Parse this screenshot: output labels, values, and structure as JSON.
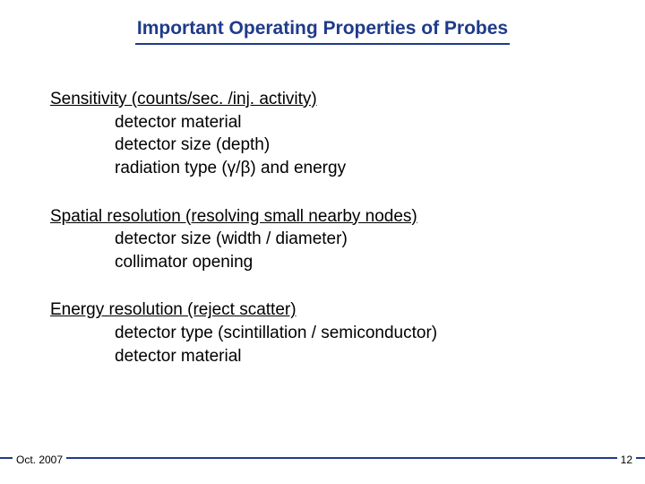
{
  "colors": {
    "accent": "#1f3b8a",
    "text": "#000000",
    "background": "#ffffff"
  },
  "typography": {
    "title_fontsize": 21,
    "body_fontsize": 19,
    "footer_fontsize": 12,
    "font_family": "Verdana"
  },
  "title": "Important Operating Properties of Probes",
  "sections": [
    {
      "heading": "Sensitivity (counts/sec. /inj. activity)",
      "items": [
        "detector material",
        "detector size (depth)",
        "radiation type (γ/β) and energy"
      ]
    },
    {
      "heading": "Spatial resolution (resolving small nearby nodes)",
      "items": [
        "detector size (width / diameter)",
        "collimator opening"
      ]
    },
    {
      "heading": "Energy resolution (reject scatter)",
      "items": [
        "detector type (scintillation / semiconductor)",
        "detector material"
      ]
    }
  ],
  "footer": {
    "date": "Oct. 2007",
    "page": "12"
  }
}
